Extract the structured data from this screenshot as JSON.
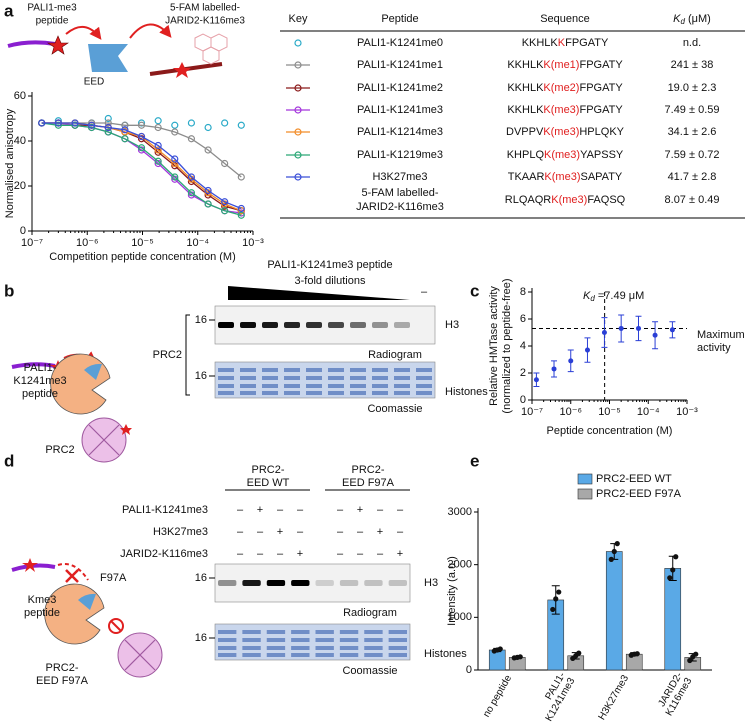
{
  "panel_labels": [
    "a",
    "b",
    "c",
    "d",
    "e"
  ],
  "panel_a_schematic": {
    "peptide_lines": [
      "PALI1-me3",
      "peptide"
    ],
    "probe_lines": [
      "5-FAM labelled-",
      "JARID2-K116me3"
    ],
    "protein": "EED"
  },
  "chart_data": [
    {
      "type": "line",
      "x_label": "Competition peptide concentration (M)",
      "y_label": "Normalised anisotropy",
      "xscale": "log",
      "xlim": [
        1e-07,
        0.001
      ],
      "xticks": [
        {
          "value": 1e-07,
          "label": "10⁻⁷"
        },
        {
          "value": 1e-06,
          "label": "10⁻⁶"
        },
        {
          "value": 1e-05,
          "label": "10⁻⁵"
        },
        {
          "value": 0.0001,
          "label": "10⁻⁴"
        },
        {
          "value": 0.001,
          "label": "10⁻³"
        }
      ],
      "ylim": [
        0,
        60
      ],
      "yticks": [
        0,
        20,
        40,
        60
      ],
      "x": [
        1.5e-07,
        3e-07,
        6e-07,
        1.2e-06,
        2.4e-06,
        4.8e-06,
        9.6e-06,
        1.92e-05,
        3.84e-05,
        7.68e-05,
        0.000154,
        0.000307,
        0.000614
      ],
      "series": [
        {
          "name": "PALI1-K1241me0",
          "color": "#2aaac8",
          "line": false,
          "values": [
            48,
            49,
            47,
            48,
            50,
            47,
            48,
            49,
            47,
            48,
            46,
            48,
            47
          ]
        },
        {
          "name": "PALI1-K1241me1",
          "color": "#8c8c8c",
          "line": true,
          "values": [
            48,
            48,
            48,
            48,
            48,
            47,
            47,
            46,
            44,
            41,
            36,
            30,
            24
          ]
        },
        {
          "name": "PALI1-K1241me2",
          "color": "#8b1a1a",
          "line": true,
          "values": [
            48,
            48,
            47,
            47,
            46,
            44,
            41,
            35,
            29,
            22,
            16,
            11,
            9
          ]
        },
        {
          "name": "PALI1-K1241me3",
          "color": "#a335dc",
          "line": true,
          "values": [
            48,
            48,
            47,
            46,
            44,
            41,
            36,
            30,
            23,
            16,
            12,
            9,
            8
          ]
        },
        {
          "name": "PALI1-K1214me3",
          "color": "#f28c28",
          "line": true,
          "values": [
            48,
            48,
            48,
            47,
            46,
            44,
            42,
            36,
            30,
            23,
            17,
            12,
            9
          ]
        },
        {
          "name": "PALI1-K1219me3",
          "color": "#2aa876",
          "line": true,
          "values": [
            48,
            47,
            47,
            46,
            44,
            41,
            37,
            31,
            24,
            17,
            12,
            9,
            7
          ]
        },
        {
          "name": "H3K27me3",
          "color": "#3b4fd8",
          "line": true,
          "values": [
            48,
            48,
            48,
            47,
            46,
            45,
            42,
            38,
            32,
            24,
            18,
            13,
            10
          ]
        }
      ]
    },
    {
      "type": "scatter",
      "x_label": "Peptide concentration (M)",
      "y_label_lines": [
        "Relative HMTase activity",
        "(normalized to peptide-free)"
      ],
      "xscale": "log",
      "xlim": [
        1e-07,
        0.001
      ],
      "xticks": [
        {
          "value": 1e-07,
          "label": "10⁻⁷"
        },
        {
          "value": 1e-06,
          "label": "10⁻⁶"
        },
        {
          "value": 1e-05,
          "label": "10⁻⁵"
        },
        {
          "value": 0.0001,
          "label": "10⁻⁴"
        },
        {
          "value": 0.001,
          "label": "10⁻³"
        }
      ],
      "ylim": [
        0,
        8
      ],
      "yticks": [
        0,
        2,
        4,
        6,
        8
      ],
      "color": "#2a3fd6",
      "x": [
        1.3e-07,
        3.7e-07,
        1e-06,
        2.7e-06,
        7.4e-06,
        2e-05,
        5.6e-05,
        0.00015,
        0.00042
      ],
      "values": [
        1.5,
        2.3,
        2.9,
        3.7,
        5.0,
        5.3,
        5.3,
        4.8,
        5.2
      ],
      "errors": [
        0.5,
        0.6,
        0.8,
        0.9,
        1.1,
        1.0,
        0.9,
        1.0,
        0.6
      ],
      "ref_x": 7.49e-06,
      "ref_y": 5.3,
      "kd_annotation": {
        "main": "K",
        "sub": "d",
        "rest": " =7.49 μM"
      },
      "max_lines": [
        "Maximum",
        "activity"
      ]
    },
    {
      "type": "bar",
      "y_label": "Intensity (a.u.)",
      "ylim": [
        0,
        3000
      ],
      "yticks": [
        0,
        1000,
        2000,
        3000
      ],
      "categories": [
        [
          "no peptide"
        ],
        [
          "PALI1-",
          "K1241me3"
        ],
        [
          "H3K27me3"
        ],
        [
          "JARID2-",
          "K116me3"
        ]
      ],
      "series": [
        {
          "name": "PRC2-EED WT",
          "color": "#5aa9e6",
          "values": [
            380,
            1330,
            2250,
            1930
          ],
          "errors": [
            30,
            270,
            150,
            230
          ],
          "replicates": [
            [
              360,
              380,
              400
            ],
            [
              1150,
              1350,
              1480
            ],
            [
              2100,
              2250,
              2400
            ],
            [
              1750,
              1900,
              2150
            ]
          ]
        },
        {
          "name": "PRC2-EED F97A",
          "color": "#a8a8a8",
          "values": [
            240,
            270,
            300,
            240
          ],
          "errors": [
            15,
            60,
            30,
            70
          ],
          "replicates": [
            [
              230,
              240,
              250
            ],
            [
              220,
              270,
              320
            ],
            [
              280,
              300,
              310
            ],
            [
              180,
              250,
              300
            ]
          ]
        }
      ]
    }
  ],
  "table": {
    "header": {
      "key": "Key",
      "peptide": "Peptide",
      "sequence": "Sequence",
      "kd": {
        "main": "K",
        "sub": "d",
        "unit": " (μM)"
      }
    },
    "rows": [
      {
        "sequence": {
          "pre": "KKHLK",
          "mod": "K",
          "post": "FPGATY"
        },
        "kd": "n.d."
      },
      {
        "sequence": {
          "pre": "KKHLK",
          "mod": "K(me1)",
          "post": "FPGATY"
        },
        "kd": "241 ± 38"
      },
      {
        "sequence": {
          "pre": "KKHLK",
          "mod": "K(me2)",
          "post": "FPGATY"
        },
        "kd": "19.0 ± 2.3"
      },
      {
        "sequence": {
          "pre": "KKHLK",
          "mod": "K(me3)",
          "post": "FPGATY"
        },
        "kd": "7.49 ± 0.59"
      },
      {
        "sequence": {
          "pre": "DVPPV",
          "mod": "K(me3)",
          "post": "HPLQKY"
        },
        "kd": "34.1 ± 2.6"
      },
      {
        "sequence": {
          "pre": "KHPLQ",
          "mod": "K(me3)",
          "post": "YAPSSY"
        },
        "kd": "7.59 ± 0.72"
      },
      {
        "sequence": {
          "pre": "TKAAR",
          "mod": "K(me3)",
          "post": "SAPATY"
        },
        "kd": "41.7 ± 2.8"
      },
      {
        "peptide_lines": [
          "5-FAM labelled-",
          "JARID2-K116me3"
        ],
        "sequence": {
          "pre": "RLQAQR",
          "mod": "K(me3)",
          "post": "FAQSQ"
        },
        "kd": "8.07 ± 0.49"
      }
    ]
  },
  "panel_b": {
    "schematic": {
      "peptide_lines": [
        "PALI1-",
        "K1241me3",
        "peptide"
      ],
      "complex": "PRC2"
    },
    "gel": {
      "title": "PALI1-K1241me3 peptide",
      "subtitle": "3-fold dilutions",
      "control": "–",
      "bracket": "PRC2",
      "top": {
        "marker": "16",
        "band": "H3",
        "caption": "Radiogram"
      },
      "bottom": {
        "marker": "16",
        "band": "Histones",
        "caption": "Coomassie"
      }
    }
  },
  "panel_d": {
    "schematic": {
      "peptide_lines": [
        "Kme3",
        "peptide"
      ],
      "mutation": "F97A",
      "complex_lines": [
        "PRC2-",
        "EED F97A"
      ]
    },
    "groups": [
      [
        "PRC2-",
        "EED WT"
      ],
      [
        "PRC2-",
        "EED F97A"
      ]
    ],
    "rows": [
      {
        "label": "PALI1-K1241me3",
        "signs": [
          "–",
          "+",
          "–",
          "–",
          "–",
          "+",
          "–",
          "–"
        ]
      },
      {
        "label": "H3K27me3",
        "signs": [
          "–",
          "–",
          "+",
          "–",
          "–",
          "–",
          "+",
          "–"
        ]
      },
      {
        "label": "JARID2-K116me3",
        "signs": [
          "–",
          "–",
          "–",
          "+",
          "–",
          "–",
          "–",
          "+"
        ]
      }
    ],
    "gel": {
      "top": {
        "marker": "16",
        "band": "H3",
        "caption": "Radiogram"
      },
      "bottom": {
        "marker": "16",
        "band": "Histones",
        "caption": "Coomassie"
      }
    }
  }
}
